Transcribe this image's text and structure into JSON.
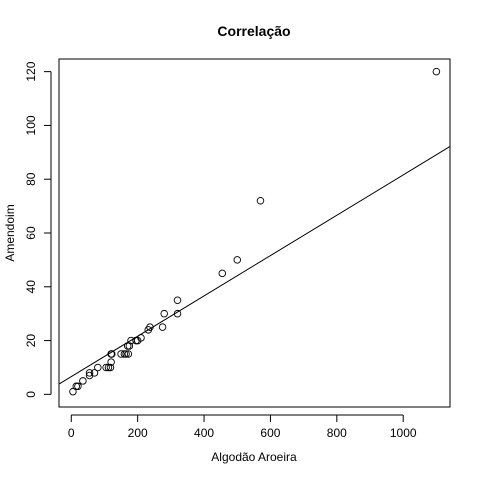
{
  "chart_data": {
    "type": "scatter",
    "title": "Correlação",
    "xlabel": "Algodão Aroeira",
    "ylabel": "Amendoim",
    "xlim": [
      -37,
      1141
    ],
    "ylim": [
      -4.7,
      124.7
    ],
    "x_ticks": [
      0,
      200,
      400,
      600,
      800,
      1000
    ],
    "y_ticks": [
      0,
      20,
      40,
      60,
      80,
      100,
      120
    ],
    "x_tick_labels": [
      "0",
      "200",
      "400",
      "600",
      "800",
      "1000"
    ],
    "y_tick_labels": [
      "0",
      "20",
      "40",
      "60",
      "80",
      "100",
      "120"
    ],
    "grid": false,
    "legend": "none",
    "points": [
      {
        "x": 5,
        "y": 1
      },
      {
        "x": 15,
        "y": 3
      },
      {
        "x": 20,
        "y": 3
      },
      {
        "x": 35,
        "y": 5
      },
      {
        "x": 55,
        "y": 7
      },
      {
        "x": 55,
        "y": 8
      },
      {
        "x": 70,
        "y": 8
      },
      {
        "x": 80,
        "y": 10
      },
      {
        "x": 105,
        "y": 10
      },
      {
        "x": 112,
        "y": 10
      },
      {
        "x": 118,
        "y": 10
      },
      {
        "x": 120,
        "y": 12
      },
      {
        "x": 120,
        "y": 15
      },
      {
        "x": 122,
        "y": 15
      },
      {
        "x": 150,
        "y": 15
      },
      {
        "x": 160,
        "y": 15
      },
      {
        "x": 165,
        "y": 15
      },
      {
        "x": 172,
        "y": 15
      },
      {
        "x": 170,
        "y": 18
      },
      {
        "x": 175,
        "y": 18
      },
      {
        "x": 180,
        "y": 20
      },
      {
        "x": 195,
        "y": 20
      },
      {
        "x": 200,
        "y": 20
      },
      {
        "x": 210,
        "y": 21
      },
      {
        "x": 232,
        "y": 24
      },
      {
        "x": 237,
        "y": 25
      },
      {
        "x": 275,
        "y": 25
      },
      {
        "x": 280,
        "y": 30
      },
      {
        "x": 320,
        "y": 30
      },
      {
        "x": 320,
        "y": 35
      },
      {
        "x": 455,
        "y": 45
      },
      {
        "x": 500,
        "y": 50
      },
      {
        "x": 570,
        "y": 72
      },
      {
        "x": 1100,
        "y": 120
      }
    ],
    "regression_line": {
      "type": "linear",
      "intercept": 6.6,
      "slope": 0.075
    }
  }
}
